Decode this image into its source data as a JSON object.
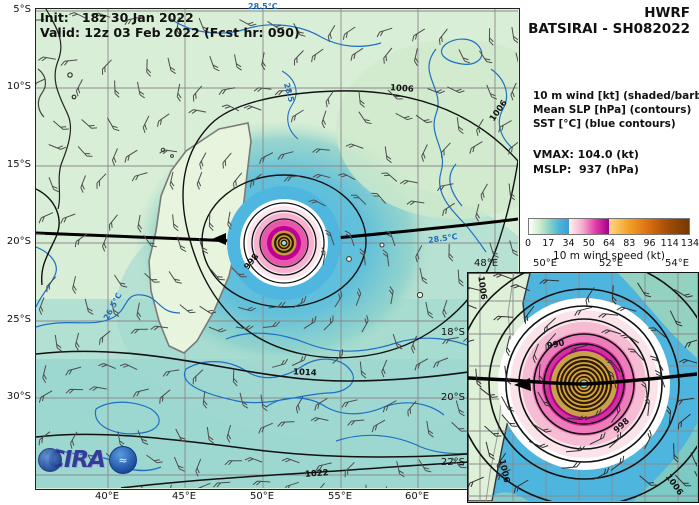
{
  "header": {
    "init": "Init:   18z 30 Jan 2022",
    "valid": "Valid: 12z 03 Feb 2022 (Fcst hr: 090)",
    "model": "HWRF",
    "storm_id": "BATSIRAI - SH082022"
  },
  "legend": {
    "shading": "10 m wind [kt] (shaded/barb)",
    "contours": "Mean SLP [hPa] (contours)",
    "sst": "SST [°C] (blue contours)",
    "vmax": "VMAX: 104.0 (kt)",
    "mslp": "MSLP:  937 (hPa)"
  },
  "colorbar": {
    "label": "10 m wind speed (kt)",
    "ticks": [
      "0",
      "17",
      "34",
      "50",
      "64",
      "83",
      "96",
      "114",
      "134"
    ],
    "segments": {
      "calm_to_gale": [
        "#ffffff",
        "#d2eed0",
        "#8cd4c4",
        "#4cb6da",
        "#3c9cd4"
      ],
      "gale_to_hurricane": [
        "#fff3f6",
        "#f6aecd",
        "#e23aa8",
        "#a60087"
      ],
      "hurricane_plus": [
        "#ffd884",
        "#f2a025",
        "#d96d10",
        "#a04c06",
        "#763803"
      ]
    }
  },
  "main_map": {
    "lat_ticks": [
      "5°S",
      "10°S",
      "15°S",
      "20°S",
      "25°S",
      "30°S"
    ],
    "lon_ticks": [
      "40°E",
      "45°E",
      "50°E",
      "55°E",
      "60°E"
    ],
    "slp_labels": [
      "1006",
      "1006",
      "998",
      "1014",
      "1022"
    ],
    "sst_labels": [
      "28.5°C",
      "28.5",
      "28.5°C",
      "26.5°C"
    ]
  },
  "inset": {
    "lon_ticks": [
      "48°E",
      "50°E",
      "52°E",
      "54°E"
    ],
    "lat_ticks": [
      "18°S",
      "20°S",
      "22°S"
    ],
    "slp_labels": [
      "990",
      "998",
      "1006",
      "1006",
      "1006"
    ]
  },
  "logo": {
    "text": "CIRA",
    "badge_glyph": "≈"
  },
  "chart_data": {
    "type": "heatmap",
    "title": "HWRF BATSIRAI - SH082022",
    "init_time": "18z 30 Jan 2022",
    "valid_time": "12z 03 Feb 2022",
    "forecast_hour": 90,
    "fields": [
      "10 m wind [kt] (shaded/barb)",
      "Mean SLP [hPa] (contours)",
      "SST [°C] (blue contours)"
    ],
    "vmax_kt": 104.0,
    "mslp_hpa": 937,
    "main_axes": {
      "lon_ticks_deg_e": [
        40,
        45,
        50,
        55,
        60
      ],
      "lat_ticks_deg_s": [
        5,
        10,
        15,
        20,
        25,
        30
      ],
      "grid": true
    },
    "inset_axes": {
      "lon_ticks_deg_e": [
        48,
        50,
        52,
        54
      ],
      "lat_ticks_deg_s": [
        18,
        20,
        22
      ],
      "grid": true
    },
    "storm_center_approx": {
      "lon_deg_e": 51.2,
      "lat_deg_s": 19.5
    },
    "slp_contour_labels_hpa": [
      990,
      998,
      1006,
      1014,
      1022
    ],
    "sst_contour_labels_c": [
      26.5,
      28.5
    ],
    "colorbar": {
      "label": "10 m wind speed (kt)",
      "ticks_kt": [
        0,
        17,
        34,
        50,
        64,
        83,
        96,
        114,
        134
      ],
      "range": [
        0,
        134
      ],
      "legend_position": "right"
    }
  }
}
